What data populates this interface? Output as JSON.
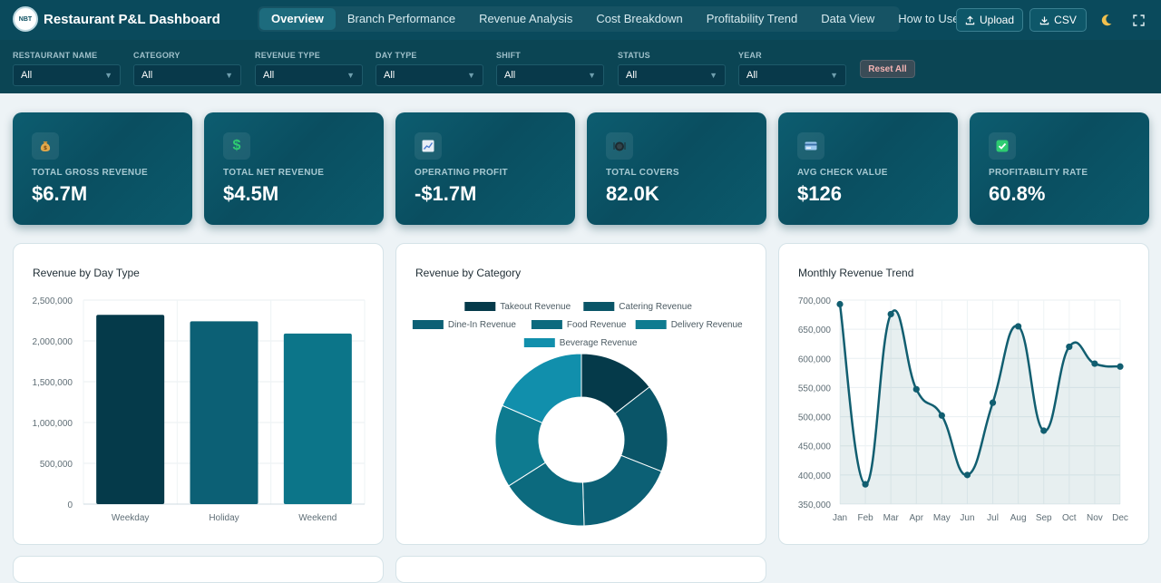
{
  "header": {
    "logo_text": "NBT",
    "title": "Restaurant P&L Dashboard",
    "tabs": [
      "Overview",
      "Branch Performance",
      "Revenue Analysis",
      "Cost Breakdown",
      "Profitability Trend",
      "Data View",
      "How to Use"
    ],
    "upload_label": "Upload",
    "csv_label": "CSV"
  },
  "filters": {
    "items": [
      {
        "label": "RESTAURANT NAME",
        "value": "All"
      },
      {
        "label": "CATEGORY",
        "value": "All"
      },
      {
        "label": "REVENUE TYPE",
        "value": "All"
      },
      {
        "label": "DAY TYPE",
        "value": "All"
      },
      {
        "label": "SHIFT",
        "value": "All"
      },
      {
        "label": "STATUS",
        "value": "All"
      },
      {
        "label": "YEAR",
        "value": "All"
      }
    ],
    "reset_label": "Reset All"
  },
  "kpis": [
    {
      "icon": "money-bag-icon",
      "label": "TOTAL GROSS REVENUE",
      "value": "$6.7M"
    },
    {
      "icon": "dollar-icon",
      "label": "TOTAL NET REVENUE",
      "value": "$4.5M"
    },
    {
      "icon": "trend-chart-icon",
      "label": "OPERATING PROFIT",
      "value": "-$1.7M"
    },
    {
      "icon": "plate-icon",
      "label": "TOTAL COVERS",
      "value": "82.0K"
    },
    {
      "icon": "card-icon",
      "label": "AVG CHECK VALUE",
      "value": "$126"
    },
    {
      "icon": "checkmark-icon",
      "label": "PROFITABILITY RATE",
      "value": "60.8%"
    }
  ],
  "colors": {
    "header_bg": "#0a4a5c",
    "filter_bg": "#0b4554",
    "accent": "#0e6477",
    "positive": "#2ecc71"
  },
  "charts": {
    "day_type": {
      "title": "Revenue by Day Type"
    },
    "category": {
      "title": "Revenue by Category"
    },
    "monthly": {
      "title": "Monthly Revenue Trend"
    }
  },
  "chart_data": [
    {
      "type": "bar",
      "title": "Revenue by Day Type",
      "categories": [
        "Weekday",
        "Holiday",
        "Weekend"
      ],
      "values": [
        2320000,
        2240000,
        2090000
      ],
      "colors": [
        "#053a4a",
        "#0c6075",
        "#0c7589"
      ],
      "ylim": [
        0,
        2500000
      ],
      "yticks": [
        0,
        500000,
        1000000,
        1500000,
        2000000,
        2500000
      ],
      "ytick_labels": [
        "0",
        "500,000",
        "1,000,000",
        "1,500,000",
        "2,000,000",
        "2,500,000"
      ],
      "grid": true
    },
    {
      "type": "pie",
      "title": "Revenue by Category",
      "donut": true,
      "labels": [
        "Takeout Revenue",
        "Catering Revenue",
        "Dine-In Revenue",
        "Food Revenue",
        "Delivery Revenue",
        "Beverage Revenue"
      ],
      "values": [
        14.5,
        16.5,
        18.5,
        16.5,
        15.5,
        18.5
      ],
      "colors": [
        "#053a4a",
        "#0a5568",
        "#0c6075",
        "#0c6a7e",
        "#0e7b90",
        "#118fac"
      ],
      "legend": "top"
    },
    {
      "type": "line",
      "title": "Monthly Revenue Trend",
      "x": [
        "Jan",
        "Feb",
        "Mar",
        "Apr",
        "May",
        "Jun",
        "Jul",
        "Aug",
        "Sep",
        "Oct",
        "Nov",
        "Dec"
      ],
      "values": [
        693000,
        384000,
        676000,
        547000,
        502000,
        400000,
        524000,
        655000,
        476000,
        620000,
        591000,
        586000
      ],
      "ylim": [
        350000,
        700000
      ],
      "yticks": [
        350000,
        400000,
        450000,
        500000,
        550000,
        600000,
        650000,
        700000
      ],
      "ytick_labels": [
        "350,000",
        "400,000",
        "450,000",
        "500,000",
        "550,000",
        "600,000",
        "650,000",
        "700,000"
      ],
      "area_fill": true,
      "color": "#115e70",
      "grid": true
    }
  ]
}
